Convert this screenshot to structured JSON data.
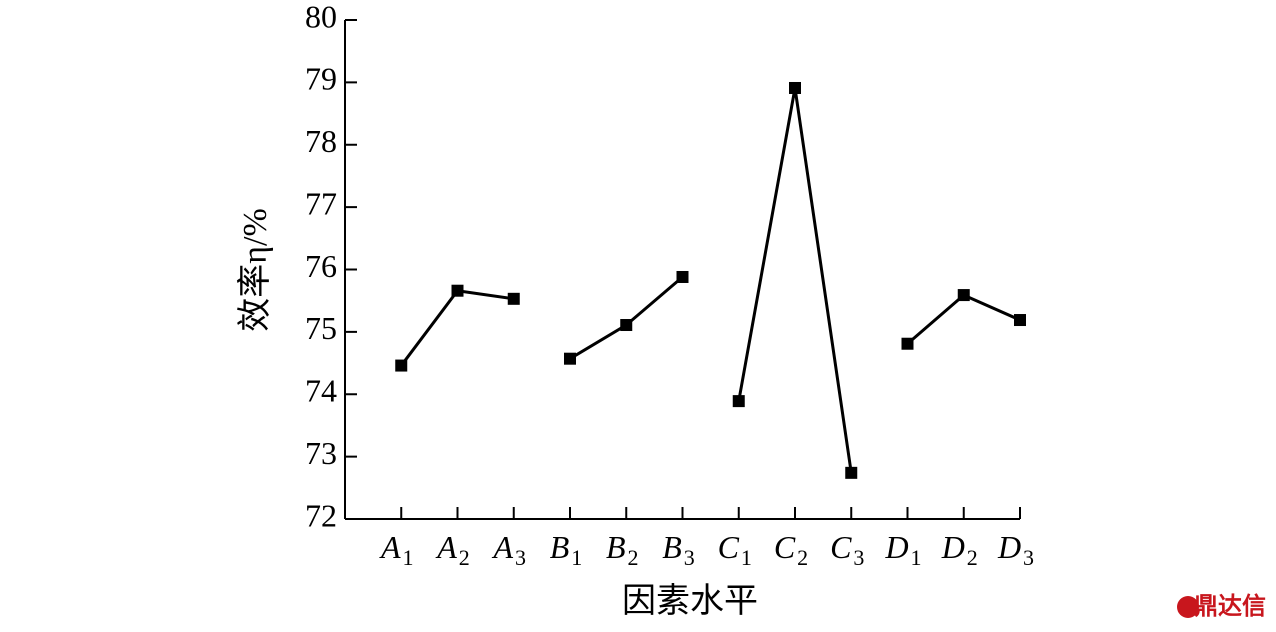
{
  "chart_data": {
    "type": "line",
    "y_label": "效率η/%",
    "x_label": "因素水平",
    "watermark": "鼎达信",
    "categories": [
      "A1",
      "A2",
      "A3",
      "B1",
      "B2",
      "B3",
      "C1",
      "C2",
      "C3",
      "D1",
      "D2",
      "D3"
    ],
    "series": [
      {
        "color": "#000000",
        "values": [
          74.46,
          75.66,
          75.53,
          null,
          null,
          null,
          null,
          null,
          null,
          null,
          null,
          null
        ]
      },
      {
        "color": "#000000",
        "values": [
          null,
          null,
          null,
          74.57,
          75.11,
          75.88,
          null,
          null,
          null,
          null,
          null,
          null
        ]
      },
      {
        "color": "#000000",
        "values": [
          null,
          null,
          null,
          null,
          null,
          null,
          73.89,
          78.91,
          72.74,
          null,
          null,
          null
        ]
      },
      {
        "color": "#000000",
        "values": [
          null,
          null,
          null,
          null,
          null,
          null,
          null,
          null,
          null,
          74.81,
          75.59,
          75.19
        ]
      }
    ],
    "ylim": [
      72,
      80
    ],
    "yticks": [
      72,
      73,
      74,
      75,
      76,
      77,
      78,
      79,
      80
    ],
    "grid": false
  }
}
